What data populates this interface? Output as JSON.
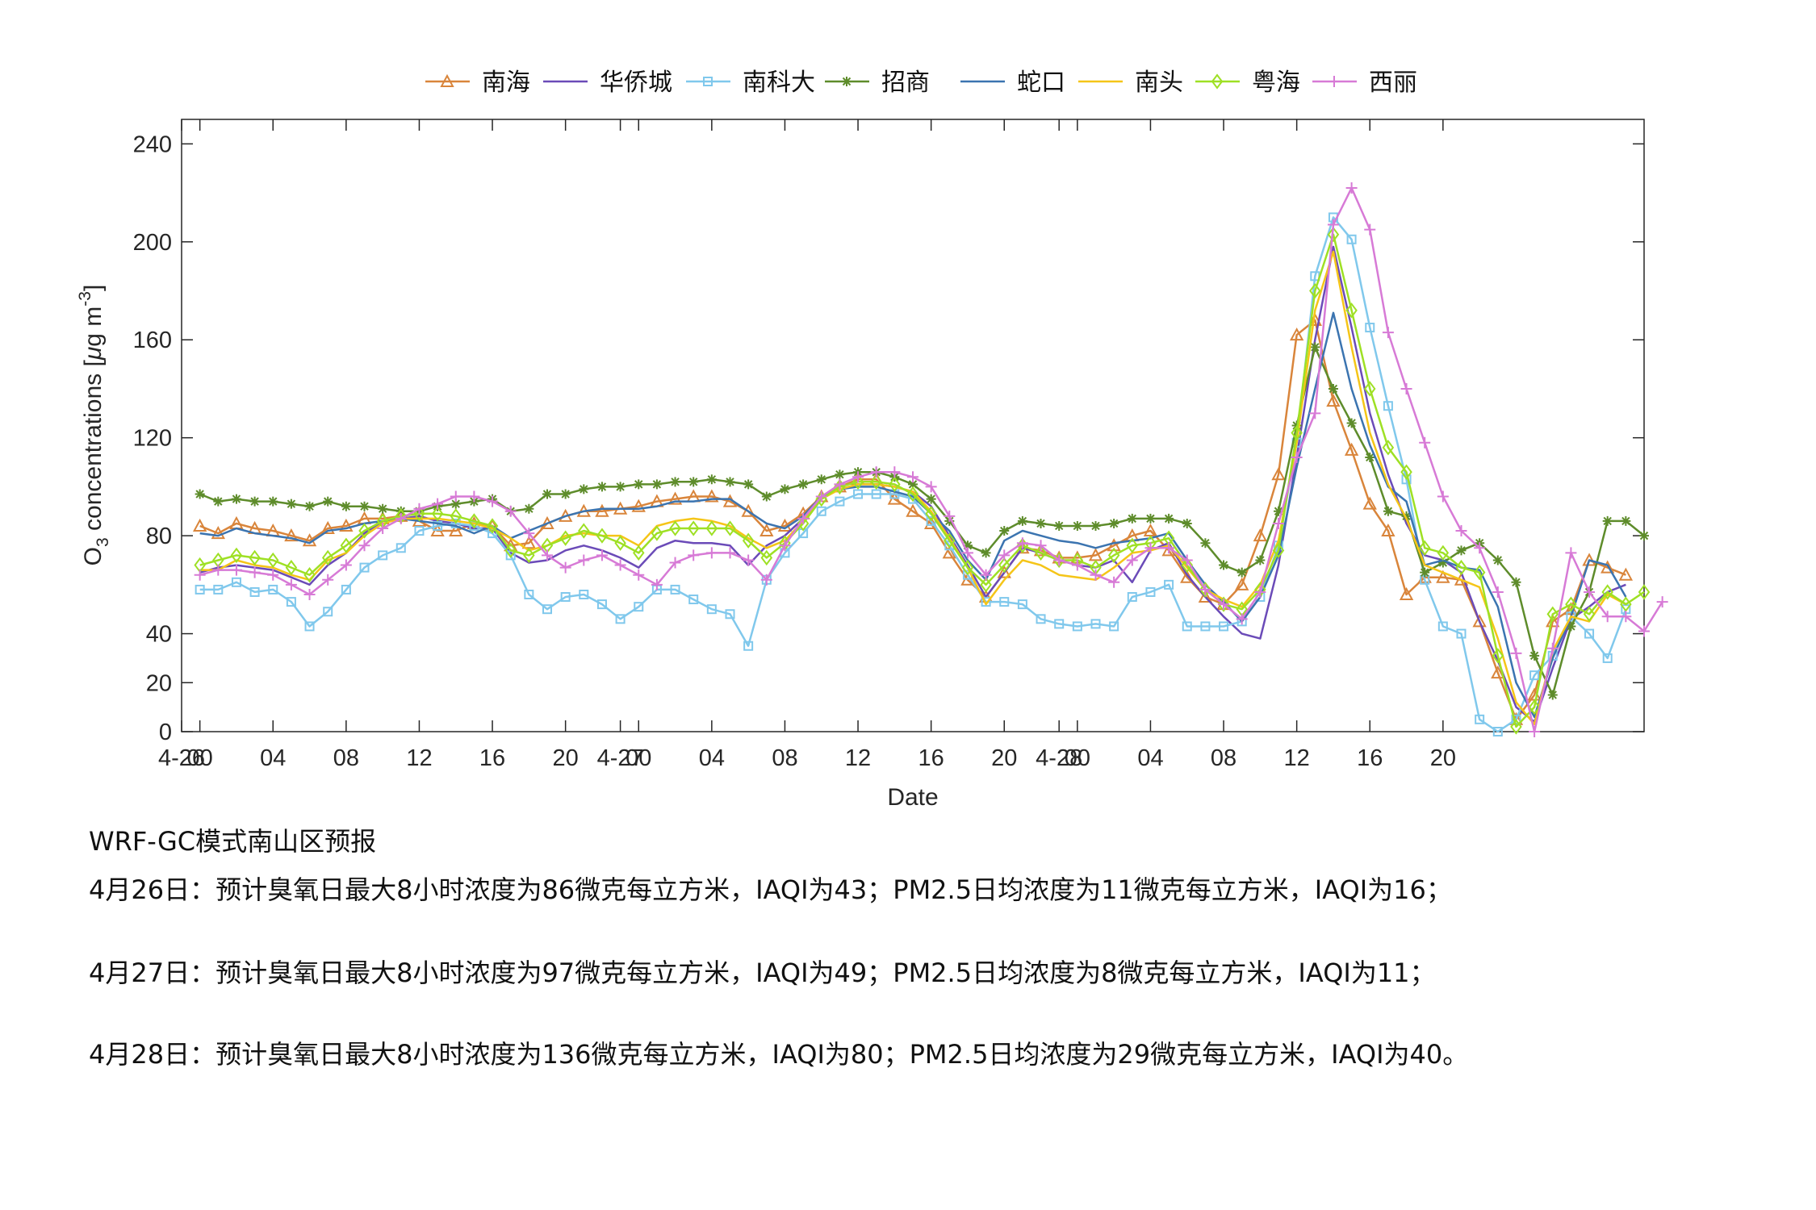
{
  "chart_data": {
    "type": "line",
    "xlabel": "Date",
    "ylabel_main": "O",
    "ylabel_sub": "3",
    "ylabel_rest": " concentrations [",
    "ylabel_mu": "μ",
    "ylabel_unit": "g m",
    "ylabel_sup": "-3",
    "ylabel_end": "]",
    "ylim": [
      0,
      250
    ],
    "y_ticks": [
      0,
      20,
      40,
      80,
      120,
      160,
      200,
      240
    ],
    "x_range": [
      -1,
      79
    ],
    "x_ticks": [
      {
        "x": -1,
        "label": "4-26"
      },
      {
        "x": 0,
        "label": "00"
      },
      {
        "x": 4,
        "label": "04"
      },
      {
        "x": 8,
        "label": "08"
      },
      {
        "x": 12,
        "label": "12"
      },
      {
        "x": 16,
        "label": "16"
      },
      {
        "x": 20,
        "label": "20"
      },
      {
        "x": 23,
        "label": "4-27"
      },
      {
        "x": 24,
        "label": "00"
      },
      {
        "x": 28,
        "label": "04"
      },
      {
        "x": 32,
        "label": "08"
      },
      {
        "x": 36,
        "label": "12"
      },
      {
        "x": 40,
        "label": "16"
      },
      {
        "x": 44,
        "label": "20"
      },
      {
        "x": 47,
        "label": "4-28"
      },
      {
        "x": 48,
        "label": "00"
      },
      {
        "x": 52,
        "label": "04"
      },
      {
        "x": 56,
        "label": "08"
      },
      {
        "x": 60,
        "label": "12"
      },
      {
        "x": 64,
        "label": "16"
      },
      {
        "x": 68,
        "label": "20"
      }
    ],
    "series": [
      {
        "name": "南海",
        "color": "#d9853b",
        "marker": "triangle",
        "values": [
          84,
          81,
          85,
          83,
          82,
          80,
          78,
          83,
          84,
          87,
          87,
          88,
          86,
          82,
          82,
          85,
          84,
          76,
          77,
          85,
          88,
          90,
          90,
          91,
          92,
          94,
          95,
          96,
          96,
          94,
          90,
          82,
          84,
          89,
          96,
          100,
          103,
          103,
          95,
          90,
          85,
          73,
          62,
          55,
          65,
          75,
          74,
          71,
          71,
          72,
          76,
          80,
          82,
          74,
          63,
          55,
          52,
          60,
          80,
          105,
          162,
          168,
          135,
          115,
          93,
          82,
          56,
          63,
          63,
          62,
          45,
          24,
          5,
          15,
          45,
          50,
          70,
          67,
          64
        ]
      },
      {
        "name": "华侨城",
        "color": "#6b4bb8",
        "marker": "none",
        "values": [
          65,
          67,
          68,
          67,
          66,
          63,
          60,
          68,
          73,
          81,
          86,
          87,
          88,
          86,
          85,
          83,
          83,
          73,
          69,
          70,
          74,
          76,
          74,
          71,
          67,
          75,
          78,
          77,
          77,
          76,
          68,
          76,
          80,
          87,
          96,
          99,
          101,
          101,
          100,
          98,
          92,
          80,
          68,
          55,
          65,
          75,
          73,
          70,
          68,
          67,
          70,
          61,
          74,
          77,
          64,
          55,
          47,
          40,
          38,
          68,
          112,
          160,
          198,
          165,
          130,
          105,
          85,
          72,
          70,
          65,
          45,
          29,
          10,
          4,
          26,
          46,
          51,
          57,
          60
        ]
      },
      {
        "name": "南科大",
        "color": "#80c8ec",
        "marker": "square",
        "values": [
          58,
          58,
          61,
          57,
          58,
          53,
          43,
          49,
          58,
          67,
          72,
          75,
          82,
          84,
          85,
          84,
          81,
          72,
          56,
          50,
          55,
          56,
          52,
          46,
          51,
          58,
          58,
          54,
          50,
          48,
          35,
          62,
          73,
          81,
          90,
          94,
          97,
          97,
          97,
          95,
          86,
          76,
          64,
          53,
          53,
          52,
          46,
          44,
          43,
          44,
          43,
          55,
          57,
          60,
          43,
          43,
          43,
          45,
          55,
          76,
          118,
          186,
          210,
          201,
          165,
          133,
          103,
          62,
          43,
          40,
          5,
          0,
          5,
          23,
          31,
          47,
          40,
          30,
          50
        ]
      },
      {
        "name": "招商",
        "color": "#5e8c2b",
        "marker": "star",
        "values": [
          97,
          94,
          95,
          94,
          94,
          93,
          92,
          94,
          92,
          92,
          91,
          90,
          90,
          92,
          93,
          94,
          95,
          90,
          91,
          97,
          97,
          99,
          100,
          100,
          101,
          101,
          102,
          102,
          103,
          102,
          101,
          96,
          99,
          101,
          103,
          105,
          106,
          106,
          104,
          101,
          95,
          86,
          76,
          73,
          82,
          86,
          85,
          84,
          84,
          84,
          85,
          87,
          87,
          87,
          85,
          77,
          68,
          65,
          70,
          90,
          125,
          157,
          140,
          126,
          112,
          90,
          88,
          65,
          69,
          74,
          77,
          70,
          61,
          31,
          15,
          43,
          57,
          86,
          86,
          80
        ]
      },
      {
        "name": "蛇口",
        "color": "#3b74b0",
        "marker": "none",
        "values": [
          81,
          80,
          83,
          81,
          80,
          79,
          77,
          82,
          83,
          85,
          86,
          87,
          86,
          85,
          84,
          81,
          84,
          79,
          82,
          85,
          88,
          90,
          91,
          91,
          91,
          92,
          94,
          94,
          95,
          95,
          90,
          85,
          83,
          88,
          96,
          99,
          100,
          100,
          98,
          96,
          89,
          82,
          70,
          62,
          78,
          82,
          80,
          78,
          77,
          75,
          77,
          78,
          79,
          81,
          70,
          60,
          53,
          45,
          55,
          72,
          108,
          140,
          171,
          140,
          117,
          100,
          94,
          68,
          70,
          67,
          66,
          51,
          20,
          6,
          30,
          47,
          70,
          68,
          55
        ]
      },
      {
        "name": "南头",
        "color": "#f5c518",
        "marker": "none",
        "values": [
          66,
          66,
          70,
          68,
          67,
          64,
          62,
          70,
          73,
          80,
          85,
          87,
          87,
          87,
          86,
          85,
          83,
          79,
          74,
          76,
          80,
          81,
          80,
          80,
          76,
          84,
          86,
          87,
          86,
          84,
          79,
          75,
          78,
          86,
          95,
          99,
          101,
          101,
          100,
          98,
          90,
          79,
          67,
          52,
          62,
          70,
          68,
          64,
          63,
          62,
          67,
          73,
          74,
          76,
          67,
          58,
          54,
          51,
          60,
          78,
          118,
          172,
          196,
          157,
          122,
          101,
          87,
          68,
          65,
          62,
          59,
          38,
          12,
          3,
          33,
          47,
          45,
          56,
          52
        ]
      },
      {
        "name": "粤海",
        "color": "#9ee024",
        "marker": "diamond",
        "values": [
          68,
          70,
          72,
          71,
          70,
          67,
          64,
          71,
          76,
          82,
          86,
          88,
          89,
          89,
          88,
          86,
          84,
          74,
          72,
          76,
          79,
          82,
          80,
          77,
          73,
          81,
          83,
          83,
          83,
          83,
          78,
          71,
          77,
          85,
          95,
          100,
          102,
          102,
          101,
          97,
          89,
          78,
          67,
          60,
          68,
          76,
          73,
          70,
          70,
          67,
          72,
          76,
          77,
          79,
          68,
          58,
          52,
          50,
          58,
          74,
          122,
          180,
          203,
          172,
          140,
          116,
          106,
          75,
          73,
          67,
          65,
          31,
          2,
          10,
          48,
          52,
          48,
          57,
          52,
          57
        ]
      },
      {
        "name": "西丽",
        "color": "#d77ad6",
        "marker": "plus",
        "values": [
          64,
          66,
          66,
          65,
          64,
          60,
          56,
          62,
          68,
          76,
          83,
          87,
          91,
          93,
          96,
          96,
          94,
          90,
          81,
          72,
          67,
          70,
          72,
          68,
          64,
          60,
          69,
          72,
          73,
          73,
          70,
          62,
          76,
          87,
          96,
          101,
          104,
          106,
          106,
          104,
          100,
          88,
          73,
          64,
          72,
          77,
          76,
          70,
          68,
          64,
          61,
          70,
          75,
          75,
          70,
          58,
          52,
          46,
          57,
          85,
          112,
          130,
          207,
          222,
          205,
          163,
          140,
          118,
          96,
          82,
          75,
          57,
          32,
          0,
          34,
          73,
          57,
          47,
          47,
          41,
          53
        ]
      }
    ]
  },
  "forecast": {
    "heading": "WRF-GC模式南山区预报",
    "line1": "4月26日：预计臭氧日最大8小时浓度为86微克每立方米，IAQI为43；PM2.5日均浓度为11微克每立方米，IAQI为16；",
    "line2": "4月27日：预计臭氧日最大8小时浓度为97微克每立方米，IAQI为49；PM2.5日均浓度为8微克每立方米，IAQI为11；",
    "line3": "4月28日：预计臭氧日最大8小时浓度为136微克每立方米，IAQI为80；PM2.5日均浓度为29微克每立方米，IAQI为40。"
  }
}
